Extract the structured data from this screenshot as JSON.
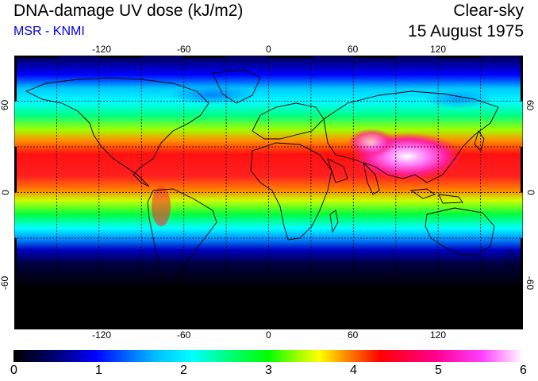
{
  "header": {
    "title": "DNA-damage UV dose (kJ/m2)",
    "credit": "MSR - KNMI",
    "sky_condition": "Clear-sky",
    "date": "15 August 1975"
  },
  "map": {
    "projection": "equirectangular",
    "lon_range": [
      -180,
      180
    ],
    "lat_range": [
      -90,
      90
    ],
    "grid": "dashed, every 30 degrees",
    "lon_ticks": [
      "-120",
      "-60",
      "0",
      "60",
      "120"
    ],
    "lat_ticks": [
      "60",
      "0",
      "-60"
    ]
  },
  "colorbar": {
    "min": 0,
    "max": 6,
    "labels": [
      "0",
      "1",
      "2",
      "3",
      "4",
      "5",
      "6"
    ],
    "colors": [
      "#000000",
      "#000070",
      "#0000ff",
      "#00c0ff",
      "#00ffff",
      "#00ff80",
      "#00ff00",
      "#a0ff00",
      "#ffff00",
      "#ff9000",
      "#ff0000",
      "#ff0090",
      "#ff40ff",
      "#ffffff"
    ]
  }
}
